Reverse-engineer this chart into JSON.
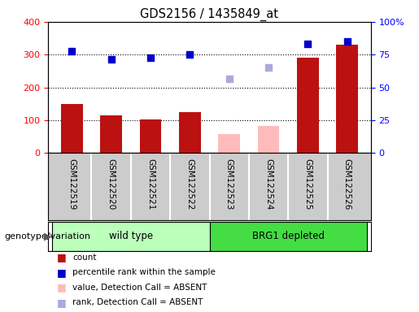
{
  "title": "GDS2156 / 1435849_at",
  "samples": [
    "GSM122519",
    "GSM122520",
    "GSM122521",
    "GSM122522",
    "GSM122523",
    "GSM122524",
    "GSM122525",
    "GSM122526"
  ],
  "counts": [
    150,
    115,
    102,
    125,
    null,
    null,
    290,
    330
  ],
  "counts_absent": [
    null,
    null,
    null,
    null,
    57,
    83,
    null,
    null
  ],
  "ranks": [
    310,
    285,
    290,
    301,
    null,
    null,
    332,
    340
  ],
  "ranks_absent": [
    null,
    null,
    null,
    null,
    226,
    260,
    null,
    null
  ],
  "bar_color_present": "#bb1111",
  "bar_color_absent": "#ffbbbb",
  "rank_color_present": "#0000cc",
  "rank_color_absent": "#aaaadd",
  "ylim_left": [
    0,
    400
  ],
  "ylim_right": [
    0,
    100
  ],
  "yticks_left": [
    0,
    100,
    200,
    300,
    400
  ],
  "yticks_right": [
    0,
    25,
    50,
    75,
    100
  ],
  "ytick_labels_right": [
    "0",
    "25",
    "50",
    "75",
    "100%"
  ],
  "groups": [
    {
      "label": "wild type",
      "start": 0,
      "end": 4,
      "color": "#bbffbb"
    },
    {
      "label": "BRG1 depleted",
      "start": 4,
      "end": 8,
      "color": "#44dd44"
    }
  ],
  "group_label_left": "genotype/variation",
  "bg_color": "#cccccc",
  "plot_bg": "#ffffff",
  "legend_items": [
    {
      "label": "count",
      "color": "#bb1111"
    },
    {
      "label": "percentile rank within the sample",
      "color": "#0000cc"
    },
    {
      "label": "value, Detection Call = ABSENT",
      "color": "#ffbbbb"
    },
    {
      "label": "rank, Detection Call = ABSENT",
      "color": "#aaaadd"
    }
  ]
}
